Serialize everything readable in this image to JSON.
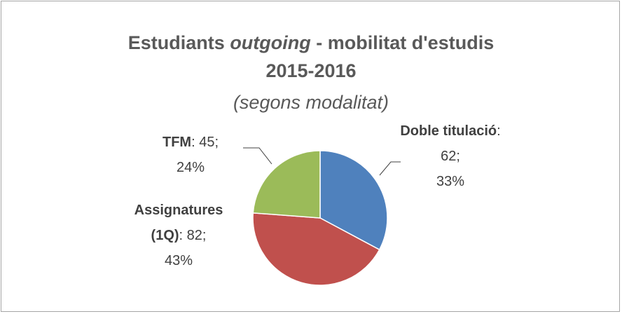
{
  "chart_data": {
    "type": "pie",
    "title": [
      "Estudiants",
      "outgoing",
      "- mobilitat d'estudis",
      "2015-2016"
    ],
    "subtitle": "(segons modalitat)",
    "categories": [
      "Doble titulació",
      "Assignatures (1Q)",
      "TFM"
    ],
    "values": [
      62,
      82,
      45
    ],
    "value_labels": [
      ": 62;",
      ": 82;",
      ": 45;"
    ],
    "percent_labels": [
      "33%",
      "43%",
      "24%"
    ],
    "colors": [
      "#4f81bd",
      "#c0504d",
      "#9bbb59"
    ]
  }
}
